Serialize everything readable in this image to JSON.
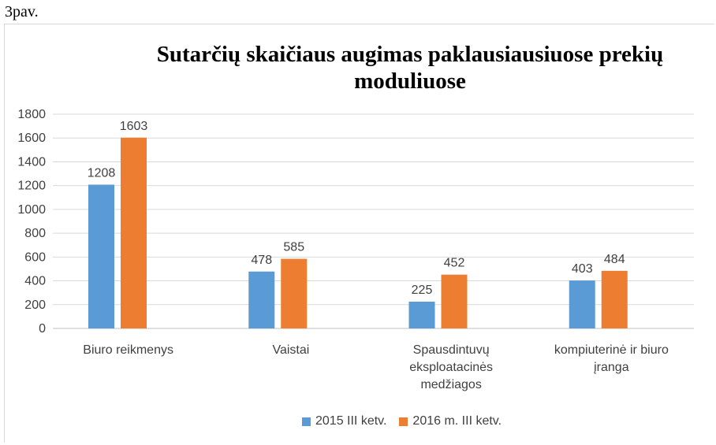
{
  "figure_label": "3pav.",
  "chart_data": {
    "type": "bar",
    "title": "Sutarčių skaičiaus augimas paklausiausiuose prekių moduliuose",
    "categories": [
      [
        "Biuro reikmenys"
      ],
      [
        "Vaistai"
      ],
      [
        "Spausdintuvų",
        "eksploatacinės",
        "medžiagos"
      ],
      [
        "kompiuterinė ir biuro",
        "įranga"
      ]
    ],
    "series": [
      {
        "name": "2015 III ketv.",
        "color": "#5b9bd5",
        "values": [
          1208,
          478,
          225,
          403
        ]
      },
      {
        "name": "2016 m. III ketv.",
        "color": "#ed7d31",
        "values": [
          1603,
          585,
          452,
          484
        ]
      }
    ],
    "ylim": [
      0,
      1800
    ],
    "yticks": [
      0,
      200,
      400,
      600,
      800,
      1000,
      1200,
      1400,
      1600,
      1800
    ],
    "grid": true,
    "legend_position": "bottom"
  }
}
